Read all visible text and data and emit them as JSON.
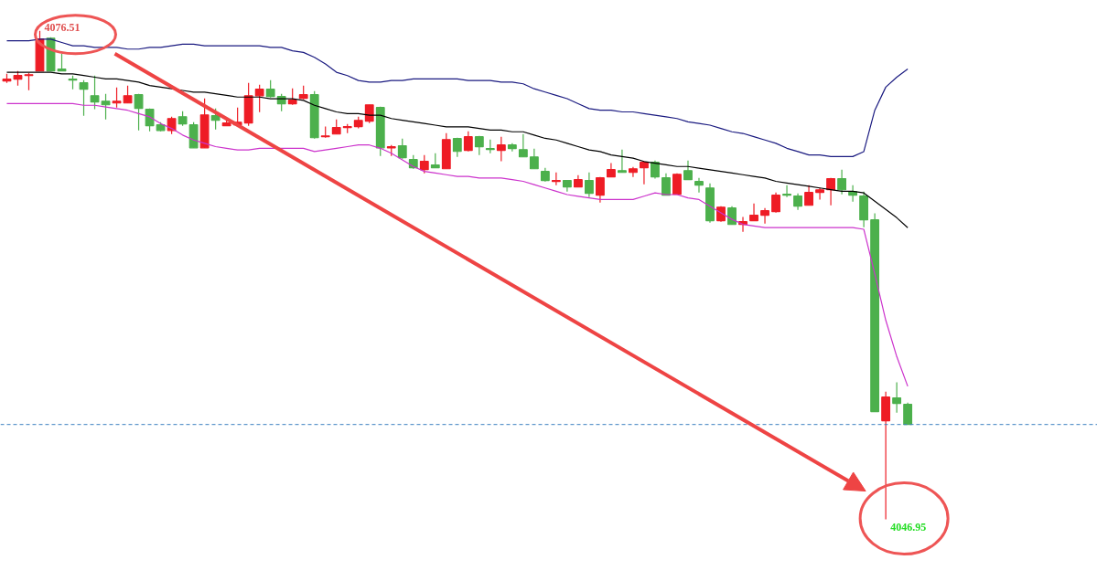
{
  "chart_data": {
    "type": "candlestick",
    "categories": [
      null,
      null,
      null,
      null,
      null,
      null,
      null,
      null,
      null,
      null,
      null,
      null,
      null,
      null,
      null,
      null,
      null,
      null,
      null,
      null,
      null,
      null,
      null,
      null,
      null,
      null,
      null,
      null,
      null,
      null,
      null,
      null,
      null,
      null,
      null,
      null,
      null,
      null,
      null,
      null,
      null,
      null,
      null,
      null,
      null,
      null,
      null,
      null,
      null,
      null,
      null,
      null,
      null,
      null,
      null,
      null,
      null,
      null,
      null,
      null,
      null,
      null,
      null,
      null,
      null,
      null,
      null,
      null,
      null,
      null,
      null,
      null,
      null,
      null,
      null,
      null,
      null,
      null,
      null,
      null,
      null,
      null,
      null
    ],
    "ohlc": [
      [
        4073.47,
        4073.91,
        4073.36,
        4073.58
      ],
      [
        4073.58,
        4074.08,
        4073.19,
        4073.8
      ],
      [
        4073.8,
        4073.97,
        4072.92,
        4073.85
      ],
      [
        4074.08,
        4076.51,
        4074.08,
        4076.01
      ],
      [
        4076.06,
        4076.12,
        4074.08,
        4074.08
      ],
      [
        4074.19,
        4075.13,
        4074.08,
        4074.08
      ],
      [
        4073.58,
        4073.8,
        4072.97,
        4073.52
      ],
      [
        4073.36,
        4073.52,
        4071.37,
        4072.97
      ],
      [
        4072.58,
        4073.8,
        4071.76,
        4072.2
      ],
      [
        4072.25,
        4072.69,
        4071.15,
        4072.03
      ],
      [
        4072.14,
        4073.08,
        4071.87,
        4072.25
      ],
      [
        4072.14,
        4073.19,
        4072.14,
        4072.58
      ],
      [
        4072.64,
        4072.69,
        4070.48,
        4071.81
      ],
      [
        4071.76,
        4071.81,
        4070.43,
        4070.76
      ],
      [
        4070.82,
        4070.98,
        4070.43,
        4070.48
      ],
      [
        4070.48,
        4071.31,
        4070.26,
        4071.2
      ],
      [
        4071.31,
        4071.64,
        4070.76,
        4070.87
      ],
      [
        4070.82,
        4070.98,
        4069.43,
        4069.43
      ],
      [
        4069.43,
        4072.42,
        4069.43,
        4071.42
      ],
      [
        4071.37,
        4071.81,
        4070.54,
        4071.09
      ],
      [
        4070.76,
        4071.26,
        4070.76,
        4070.93
      ],
      [
        4070.82,
        4071.87,
        4070.82,
        4070.98
      ],
      [
        4070.93,
        4073.36,
        4070.76,
        4072.58
      ],
      [
        4072.58,
        4073.25,
        4071.59,
        4072.97
      ],
      [
        4072.97,
        4073.52,
        4072.47,
        4072.53
      ],
      [
        4072.53,
        4072.69,
        4071.64,
        4072.09
      ],
      [
        4072.09,
        4073.03,
        4072.03,
        4072.31
      ],
      [
        4072.42,
        4073.19,
        4072.36,
        4072.64
      ],
      [
        4072.64,
        4072.86,
        4069.99,
        4070.04
      ],
      [
        4070.1,
        4070.71,
        4070.04,
        4070.15
      ],
      [
        4070.26,
        4071.15,
        4070.26,
        4070.65
      ],
      [
        4070.65,
        4070.87,
        4070.32,
        4070.71
      ],
      [
        4070.71,
        4071.31,
        4070.6,
        4071.09
      ],
      [
        4071.04,
        4072.03,
        4070.93,
        4072.03
      ],
      [
        4071.87,
        4071.92,
        4068.94,
        4069.43
      ],
      [
        4069.43,
        4069.6,
        4068.94,
        4069.49
      ],
      [
        4069.55,
        4069.99,
        4068.77,
        4068.83
      ],
      [
        4068.72,
        4068.99,
        4068.16,
        4068.22
      ],
      [
        4068.11,
        4068.99,
        4067.89,
        4068.61
      ],
      [
        4068.39,
        4069.1,
        4068.22,
        4068.22
      ],
      [
        4068.16,
        4070.32,
        4068.16,
        4069.93
      ],
      [
        4069.99,
        4070.04,
        4068.88,
        4069.21
      ],
      [
        4069.27,
        4070.43,
        4069.21,
        4070.1
      ],
      [
        4070.1,
        4070.15,
        4068.99,
        4069.49
      ],
      [
        4069.38,
        4069.93,
        4069.1,
        4069.32
      ],
      [
        4069.27,
        4070.1,
        4068.61,
        4069.6
      ],
      [
        4069.6,
        4069.71,
        4069.21,
        4069.38
      ],
      [
        4069.32,
        4070.26,
        4068.88,
        4068.88
      ],
      [
        4068.88,
        4069.38,
        4068.16,
        4068.16
      ],
      [
        4068.0,
        4068.22,
        4067.39,
        4067.45
      ],
      [
        4067.39,
        4067.94,
        4067.17,
        4067.45
      ],
      [
        4067.45,
        4067.45,
        4066.78,
        4067.06
      ],
      [
        4067.06,
        4067.78,
        4067.06,
        4067.5
      ],
      [
        4067.45,
        4067.94,
        4066.45,
        4066.67
      ],
      [
        4066.56,
        4067.67,
        4066.12,
        4067.61
      ],
      [
        4067.67,
        4068.5,
        4067.67,
        4068.11
      ],
      [
        4068.05,
        4069.32,
        4067.94,
        4067.94
      ],
      [
        4067.94,
        4068.27,
        4067.67,
        4068.16
      ],
      [
        4068.22,
        4068.61,
        4067.22,
        4068.55
      ],
      [
        4068.55,
        4068.66,
        4067.56,
        4067.67
      ],
      [
        4067.61,
        4067.89,
        4066.56,
        4066.56
      ],
      [
        4066.62,
        4067.89,
        4066.62,
        4067.83
      ],
      [
        4068.05,
        4068.66,
        4067.5,
        4067.5
      ],
      [
        4067.39,
        4067.61,
        4066.73,
        4067.17
      ],
      [
        4067.0,
        4067.28,
        4064.9,
        4065.02
      ],
      [
        4065.02,
        4065.9,
        4064.96,
        4065.84
      ],
      [
        4065.79,
        4065.9,
        4064.79,
        4064.79
      ],
      [
        4064.79,
        4065.24,
        4064.35,
        4064.96
      ],
      [
        4065.02,
        4066.06,
        4065.02,
        4065.35
      ],
      [
        4065.35,
        4065.79,
        4064.85,
        4065.62
      ],
      [
        4065.57,
        4066.73,
        4065.51,
        4066.56
      ],
      [
        4066.62,
        4067.17,
        4066.45,
        4066.56
      ],
      [
        4066.51,
        4066.67,
        4065.68,
        4065.9
      ],
      [
        4065.95,
        4067.17,
        4065.95,
        4066.73
      ],
      [
        4066.73,
        4067.0,
        4066.29,
        4066.89
      ],
      [
        4066.89,
        4067.61,
        4065.95,
        4067.56
      ],
      [
        4067.56,
        4068.11,
        4066.62,
        4066.89
      ],
      [
        4066.78,
        4067.17,
        4066.17,
        4066.56
      ],
      [
        4066.51,
        4066.78,
        4064.63,
        4065.07
      ],
      [
        4065.07,
        4065.46,
        4053.47,
        4053.47
      ],
      [
        4052.92,
        4054.68,
        4046.95,
        4054.35
      ],
      [
        4054.3,
        4055.24,
        4053.41,
        4053.97
      ],
      [
        4053.91,
        4054.02,
        4052.69,
        4052.69
      ]
    ],
    "colors": [
      "#ee1c25",
      "#ee1c25",
      "#ee1c25",
      "#ee1c25",
      "#4cb04c",
      "#4cb04c",
      "#4cb04c",
      "#4cb04c",
      "#4cb04c",
      "#4cb04c",
      "#ee1c25",
      "#ee1c25",
      "#4cb04c",
      "#4cb04c",
      "#4cb04c",
      "#ee1c25",
      "#4cb04c",
      "#4cb04c",
      "#ee1c25",
      "#4cb04c",
      "#ee1c25",
      "#ee1c25",
      "#ee1c25",
      "#ee1c25",
      "#4cb04c",
      "#4cb04c",
      "#ee1c25",
      "#ee1c25",
      "#4cb04c",
      "#ee1c25",
      "#ee1c25",
      "#ee1c25",
      "#ee1c25",
      "#ee1c25",
      "#4cb04c",
      "#ee1c25",
      "#4cb04c",
      "#4cb04c",
      "#ee1c25",
      "#4cb04c",
      "#ee1c25",
      "#4cb04c",
      "#ee1c25",
      "#4cb04c",
      "#4cb04c",
      "#ee1c25",
      "#4cb04c",
      "#4cb04c",
      "#4cb04c",
      "#4cb04c",
      "#ee1c25",
      "#4cb04c",
      "#ee1c25",
      "#4cb04c",
      "#ee1c25",
      "#ee1c25",
      "#4cb04c",
      "#ee1c25",
      "#ee1c25",
      "#4cb04c",
      "#4cb04c",
      "#ee1c25",
      "#4cb04c",
      "#4cb04c",
      "#4cb04c",
      "#ee1c25",
      "#4cb04c",
      "#ee1c25",
      "#ee1c25",
      "#ee1c25",
      "#ee1c25",
      "#4cb04c",
      "#4cb04c",
      "#ee1c25",
      "#ee1c25",
      "#ee1c25",
      "#4cb04c",
      "#4cb04c",
      "#4cb04c",
      "#4cb04c",
      "#ee1c25",
      "#4cb04c",
      "#4cb04c"
    ],
    "series": [
      {
        "type": "line",
        "color": "#1a1a80",
        "values": [
          4075.9,
          4075.9,
          4075.9,
          4076.0,
          4076.0,
          4075.8,
          4075.6,
          4075.6,
          4075.5,
          4075.5,
          4075.5,
          4075.4,
          4075.4,
          4075.5,
          4075.5,
          4075.6,
          4075.7,
          4075.7,
          4075.6,
          4075.6,
          4075.6,
          4075.6,
          4075.6,
          4075.6,
          4075.5,
          4075.5,
          4075.3,
          4075.2,
          4074.9,
          4074.5,
          4074.0,
          4073.8,
          4073.5,
          4073.4,
          4073.4,
          4073.5,
          4073.5,
          4073.6,
          4073.6,
          4073.6,
          4073.6,
          4073.6,
          4073.5,
          4073.5,
          4073.5,
          4073.4,
          4073.4,
          4073.3,
          4073.0,
          4072.8,
          4072.6,
          4072.4,
          4072.1,
          4071.8,
          4071.7,
          4071.7,
          4071.6,
          4071.6,
          4071.5,
          4071.4,
          4071.3,
          4071.2,
          4071.0,
          4070.9,
          4070.8,
          4070.6,
          4070.4,
          4070.3,
          4070.1,
          4069.9,
          4069.7,
          4069.4,
          4069.2,
          4069.0,
          4069.0,
          4068.9,
          4068.9,
          4068.9,
          4069.2,
          4071.7,
          4073.1,
          4073.7,
          4074.2
        ]
      },
      {
        "type": "line",
        "color": "#000000",
        "values": [
          4074.0,
          4074.0,
          4074.0,
          4074.0,
          4074.0,
          4073.9,
          4073.9,
          4073.8,
          4073.7,
          4073.6,
          4073.6,
          4073.5,
          4073.4,
          4073.2,
          4073.1,
          4073.0,
          4072.9,
          4072.8,
          4072.8,
          4072.7,
          4072.6,
          4072.5,
          4072.5,
          4072.5,
          4072.4,
          4072.4,
          4072.4,
          4072.3,
          4072.0,
          4071.8,
          4071.6,
          4071.5,
          4071.5,
          4071.4,
          4071.4,
          4071.2,
          4071.1,
          4071.0,
          4070.9,
          4070.8,
          4070.7,
          4070.7,
          4070.7,
          4070.6,
          4070.5,
          4070.5,
          4070.4,
          4070.4,
          4070.2,
          4070.0,
          4069.9,
          4069.7,
          4069.5,
          4069.3,
          4069.2,
          4069.0,
          4068.9,
          4068.8,
          4068.6,
          4068.5,
          4068.4,
          4068.3,
          4068.3,
          4068.2,
          4068.1,
          4068.0,
          4067.9,
          4067.8,
          4067.7,
          4067.6,
          4067.4,
          4067.3,
          4067.2,
          4067.1,
          4067.0,
          4066.9,
          4066.8,
          4066.8,
          4066.7,
          4066.2,
          4065.7,
          4065.2,
          4064.6
        ]
      },
      {
        "type": "line",
        "color": "#cc33cc",
        "values": [
          4072.1,
          4072.1,
          4072.1,
          4072.1,
          4072.1,
          4072.1,
          4072.1,
          4072.0,
          4072.0,
          4071.9,
          4071.8,
          4071.7,
          4071.5,
          4071.3,
          4070.9,
          4070.6,
          4070.2,
          4069.9,
          4069.7,
          4069.5,
          4069.4,
          4069.3,
          4069.3,
          4069.4,
          4069.4,
          4069.4,
          4069.4,
          4069.4,
          4069.2,
          4069.3,
          4069.4,
          4069.5,
          4069.6,
          4069.6,
          4069.4,
          4069.1,
          4068.7,
          4068.3,
          4068.0,
          4067.9,
          4067.8,
          4067.7,
          4067.7,
          4067.6,
          4067.6,
          4067.6,
          4067.5,
          4067.4,
          4067.2,
          4067.0,
          4066.8,
          4066.6,
          4066.5,
          4066.4,
          4066.3,
          4066.3,
          4066.3,
          4066.3,
          4066.5,
          4066.7,
          4066.6,
          4066.6,
          4066.4,
          4066.3,
          4065.9,
          4065.5,
          4065.1,
          4064.8,
          4064.7,
          4064.6,
          4064.6,
          4064.6,
          4064.6,
          4064.6,
          4064.6,
          4064.6,
          4064.6,
          4064.6,
          4064.5,
          4061.8,
          4059.0,
          4056.8,
          4055.0
        ]
      }
    ],
    "ref_lines": [
      {
        "axis": "y",
        "value": 4052.69,
        "color": "#3a7fc0",
        "line_style": "dashed"
      }
    ],
    "annotations": [
      "4076.51",
      "4046.95"
    ]
  }
}
